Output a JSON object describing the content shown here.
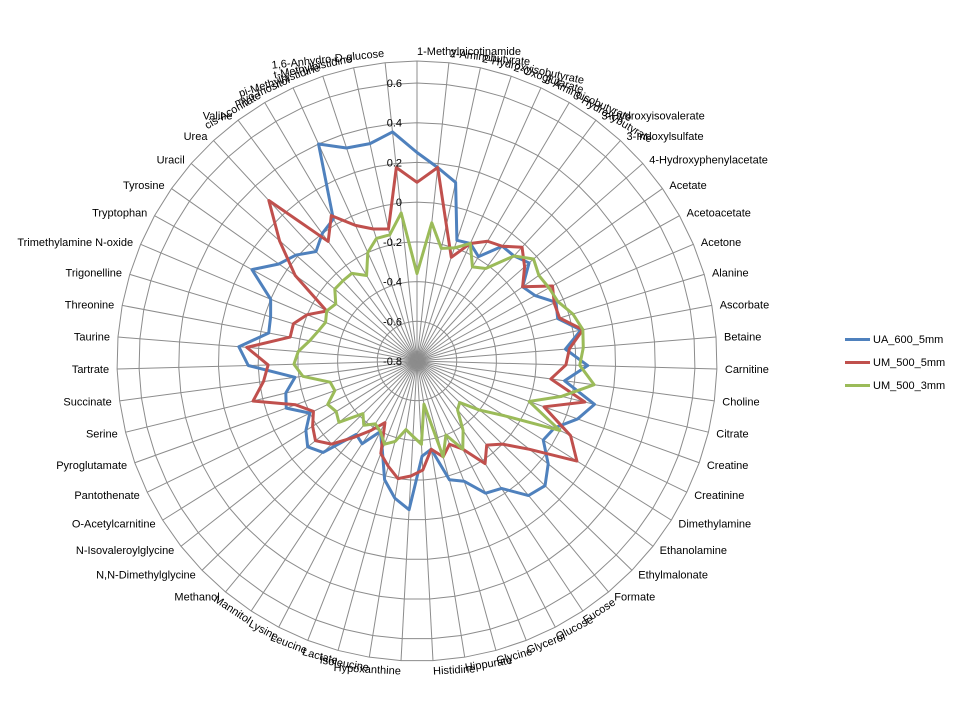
{
  "chart_data": {
    "type": "radar",
    "title": "",
    "rlim": [
      -0.8,
      0.6
    ],
    "ticks": [
      -0.8,
      -0.6,
      -0.4,
      -0.2,
      0,
      0.2,
      0.4,
      0.6
    ],
    "tick_labels": [
      "-0.8",
      "-0.6",
      "-0.4",
      "-0.2",
      "0",
      "0.2",
      "0.4",
      "0.6"
    ],
    "grid": true,
    "legend_position": "right",
    "categories": [
      "1-Methylnicotinamide",
      "2-Aminobutyrate",
      "2-Hydroxyisobutyrate",
      "2-Oxoglutarate",
      "3-Aminoisobutyrate",
      "3-Hydroxybutyrate",
      "3-Hydroxyisovalerate",
      "3-Indoxylsulfate",
      "4-Hydroxyphenylacetate",
      "Acetate",
      "Acetoacetate",
      "Acetone",
      "Alanine",
      "Ascorbate",
      "Betaine",
      "Carnitine",
      "Choline",
      "Citrate",
      "Creatine",
      "Creatinine",
      "Dimethylamine",
      "Ethanolamine",
      "Ethylmalonate",
      "Formate",
      "Fucose",
      "Glucose",
      "Glycerol",
      "Glycine",
      "Hippurate",
      "Histidine",
      "Hypoxanthine",
      "Isoleucine",
      "Lactate",
      "Leucine",
      "Lysine",
      "Mannitol",
      "Methanol",
      "N,N-Dimethylglycine",
      "N-Isovaleroylglycine",
      "O-Acetylcarnitine",
      "Pantothenate",
      "Pyroglutamate",
      "Serine",
      "Succinate",
      "Tartrate",
      "Taurine",
      "Threonine",
      "Trigonelline",
      "Trimethylamine N-oxide",
      "Tryptophan",
      "Tyrosine",
      "Uracil",
      "Urea",
      "Valine",
      "cis-Aconitate",
      "myo-Inositol",
      "pi-Methylhistidine",
      "t-Methylhistidine",
      "1,6-Anhydro-D-glucose"
    ],
    "series": [
      {
        "name": "UA_600_5mm",
        "color": "#4F81BD",
        "values": [
          0.25,
          0.18,
          0.12,
          -0.16,
          -0.15,
          -0.19,
          -0.08,
          -0.08,
          -0.05,
          -0.15,
          -0.12,
          -0.04,
          -0.06,
          0.04,
          -0.05,
          0.06,
          -0.05,
          0.12,
          0.06,
          -0.03,
          -0.05,
          0.04,
          0.1,
          0.08,
          -0.03,
          -0.05,
          -0.15,
          -0.18,
          -0.35,
          -0.32,
          -0.05,
          -0.1,
          -0.18,
          -0.32,
          -0.4,
          -0.3,
          -0.32,
          -0.14,
          -0.1,
          -0.14,
          -0.2,
          -0.1,
          -0.12,
          -0.18,
          0.05,
          0.1,
          -0.04,
          -0.03,
          0.0,
          0.15,
          0.05,
          0.01,
          -0.05,
          0.0,
          0.03,
          0.4,
          0.33,
          0.32,
          0.36
        ]
      },
      {
        "name": "UM_500_5mm",
        "color": "#C0504D",
        "values": [
          0.1,
          0.18,
          -0.1,
          -0.25,
          -0.15,
          -0.1,
          -0.08,
          -0.02,
          -0.08,
          -0.15,
          -0.02,
          -0.05,
          -0.05,
          0.05,
          -0.03,
          -0.05,
          -0.12,
          0.07,
          -0.12,
          0.06,
          0.15,
          -0.08,
          -0.2,
          -0.25,
          -0.18,
          -0.3,
          -0.35,
          -0.3,
          -0.35,
          -0.25,
          -0.22,
          -0.2,
          -0.25,
          -0.3,
          -0.45,
          -0.38,
          -0.3,
          -0.2,
          -0.15,
          -0.18,
          -0.22,
          -0.15,
          0.05,
          -0.02,
          -0.05,
          0.06,
          -0.15,
          -0.15,
          -0.2,
          -0.28,
          -0.05,
          0.12,
          0.3,
          -0.05,
          0.05,
          -0.05,
          -0.1,
          -0.12,
          0.18
        ]
      },
      {
        "name": "UM_500_3mm",
        "color": "#9BBB59",
        "values": [
          -0.36,
          -0.1,
          -0.22,
          -0.2,
          -0.15,
          -0.25,
          -0.22,
          -0.08,
          -0.02,
          -0.05,
          -0.04,
          -0.03,
          0.02,
          0.05,
          0.04,
          0.02,
          0.1,
          -0.05,
          -0.2,
          0.0,
          -0.28,
          -0.4,
          -0.5,
          -0.48,
          -0.38,
          -0.3,
          -0.4,
          -0.3,
          -0.58,
          -0.38,
          -0.42,
          -0.45,
          -0.38,
          -0.35,
          -0.4,
          -0.42,
          -0.38,
          -0.42,
          -0.3,
          -0.32,
          -0.3,
          -0.36,
          -0.35,
          -0.22,
          -0.18,
          -0.2,
          -0.25,
          -0.28,
          -0.3,
          -0.28,
          -0.3,
          -0.25,
          -0.25,
          -0.25,
          -0.3,
          -0.2,
          -0.15,
          -0.15,
          -0.05
        ]
      }
    ]
  }
}
